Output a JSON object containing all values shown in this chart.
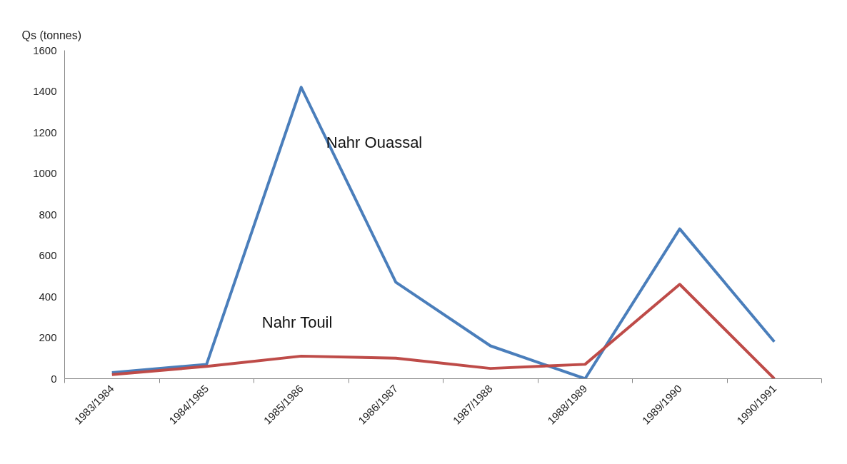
{
  "chart_data": {
    "type": "line",
    "ylabel": "Qs (tonnes)",
    "categories": [
      "1983/1984",
      "1984/1985",
      "1985/1986",
      "1986/1987",
      "1987/1988",
      "1988/1989",
      "1989/1990",
      "1990/1991"
    ],
    "series": [
      {
        "name": "Nahr Ouassal",
        "color": "#4a7ebb",
        "values": [
          30,
          70,
          1420,
          470,
          160,
          0,
          730,
          180
        ]
      },
      {
        "name": "Nahr Touil",
        "color": "#be4b48",
        "values": [
          20,
          60,
          110,
          100,
          50,
          70,
          460,
          0
        ]
      }
    ],
    "ylim": [
      0,
      1600
    ],
    "yticks": [
      0,
      200,
      400,
      600,
      800,
      1000,
      1200,
      1400,
      1600
    ],
    "grid": false,
    "marker": "none",
    "line_style": "solid"
  }
}
